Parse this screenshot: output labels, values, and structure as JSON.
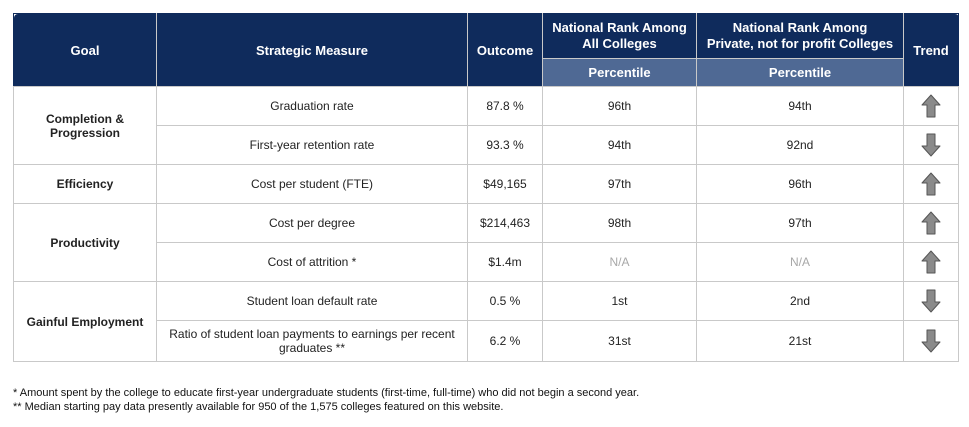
{
  "headers": {
    "goal": "Goal",
    "measure": "Strategic Measure",
    "outcome": "Outcome",
    "rank_all_line1": "National Rank Among",
    "rank_all_line2": "All Colleges",
    "rank_private_line1": "National Rank Among",
    "rank_private_line2": "Private, not for profit Colleges",
    "trend": "Trend",
    "percentile_all": "Percentile",
    "percentile_private": "Percentile"
  },
  "groups": {
    "completion": {
      "line1": "Completion &",
      "line2": "Progression"
    },
    "efficiency": "Efficiency",
    "productivity": "Productivity",
    "employment": "Gainful Employment"
  },
  "rows": [
    {
      "measure": "Graduation rate",
      "outcome": "87.8 %",
      "rank_all": "96th",
      "rank_private": "94th",
      "trend": "up"
    },
    {
      "measure": "First-year retention rate",
      "outcome": "93.3 %",
      "rank_all": "94th",
      "rank_private": "92nd",
      "trend": "down"
    },
    {
      "measure": "Cost per student (FTE)",
      "outcome": "$49,165",
      "rank_all": "97th",
      "rank_private": "96th",
      "trend": "up"
    },
    {
      "measure": "Cost per degree",
      "outcome": "$214,463",
      "rank_all": "98th",
      "rank_private": "97th",
      "trend": "up"
    },
    {
      "measure": "Cost of attrition *",
      "outcome": "$1.4m",
      "rank_all": "N/A",
      "rank_private": "N/A",
      "trend": "up"
    },
    {
      "measure": "Student loan default rate",
      "outcome": "0.5 %",
      "rank_all": "1st",
      "rank_private": "2nd",
      "trend": "down"
    },
    {
      "measure_line1": "Ratio of student loan payments to earnings per recent",
      "measure_line2": "graduates **",
      "outcome": "6.2 %",
      "rank_all": "31st",
      "rank_private": "21st",
      "trend": "down"
    }
  ],
  "footnotes": [
    "* Amount spent by the college to educate first-year undergraduate students (first-time, full-time) who did not begin a second year.",
    "** Median starting pay data presently available for 950 of the 1,575 colleges featured on this website."
  ],
  "colors": {
    "header_dark": "#0f2b5c",
    "header_sub": "#4f6994",
    "arrow_fill": "#8a8a8a",
    "border": "#c9c9c9"
  },
  "icons": {
    "up": "arrow-up-icon",
    "down": "arrow-down-icon"
  }
}
